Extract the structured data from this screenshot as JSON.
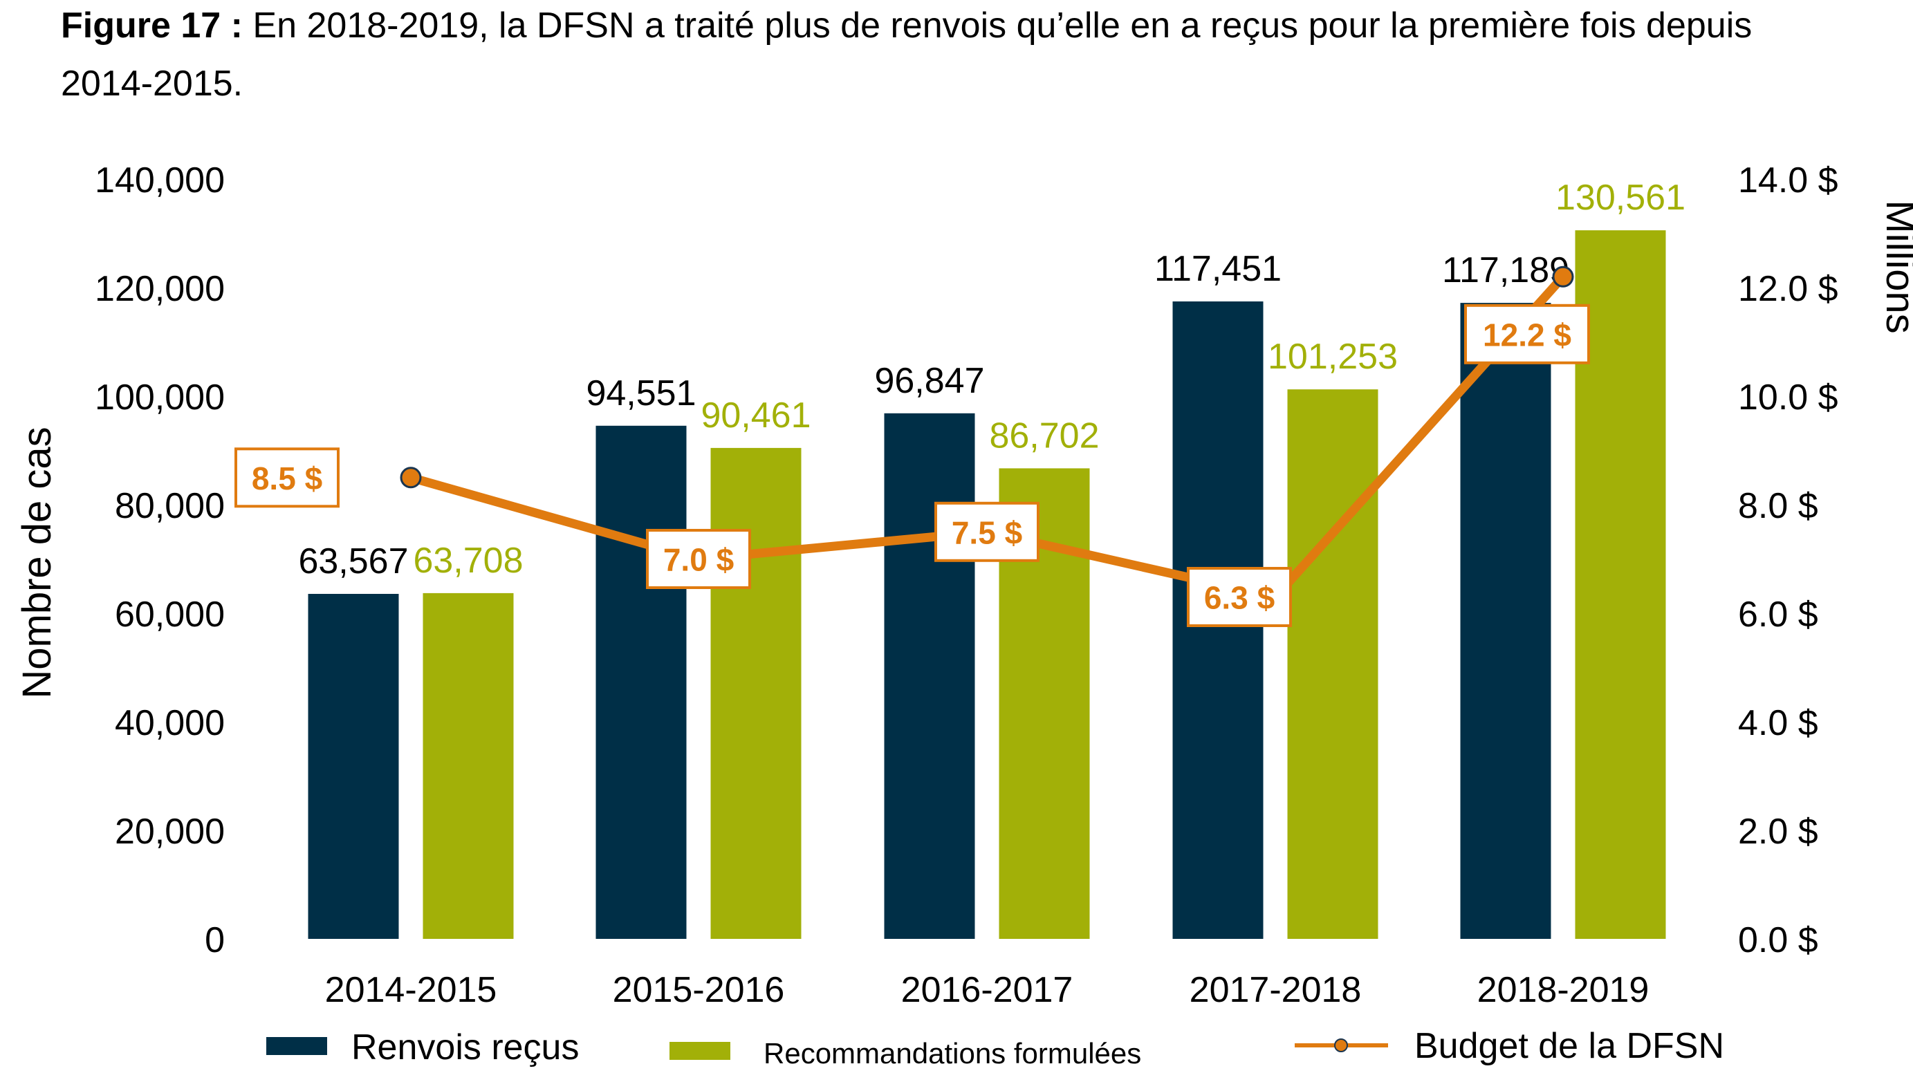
{
  "figure": {
    "label": "Figure 17 :",
    "caption": " En 2018-2019, la DFSN a traité plus de renvois qu’elle en a reçus pour la première fois depuis 2014-2015."
  },
  "colors": {
    "renvois": "#002f47",
    "recommandations": "#a2b008",
    "budget": "#e07b10",
    "text": "#000000"
  },
  "chart_data": {
    "type": "bar",
    "categories": [
      "2014-2015",
      "2015-2016",
      "2016-2017",
      "2017-2018",
      "2018-2019"
    ],
    "series": [
      {
        "name": "Renvois reçus",
        "values": [
          63567,
          94551,
          96847,
          117451,
          117189
        ],
        "labels": [
          "63,567",
          "94,551",
          "96,847",
          "117,451",
          "117,189"
        ]
      },
      {
        "name": "Recommandations formulées",
        "values": [
          63708,
          90461,
          86702,
          101253,
          130561
        ],
        "labels": [
          "63,708",
          "90,461",
          "86,702",
          "101,253",
          "130,561"
        ]
      }
    ],
    "line_series": {
      "name": "Budget de la DFSN",
      "type": "line",
      "axis": "right",
      "values": [
        8.5,
        7.0,
        7.5,
        6.3,
        12.2
      ],
      "labels": [
        "8.5 $",
        "7.0 $",
        "7.5 $",
        "6.3 $",
        "12.2 $"
      ]
    },
    "ylabel": "Nombre de cas",
    "y2label": "Millions",
    "ylim": [
      0,
      140000
    ],
    "y2lim": [
      0,
      14
    ],
    "yticks": [
      "0",
      "20,000",
      "40,000",
      "60,000",
      "80,000",
      "100,000",
      "120,000",
      "140,000"
    ],
    "y2ticks": [
      "0.0 $",
      "2.0 $",
      "4.0 $",
      "6.0 $",
      "8.0 $",
      "10.0 $",
      "12.0 $",
      "14.0 $"
    ],
    "grid": false,
    "legend_position": "bottom"
  }
}
